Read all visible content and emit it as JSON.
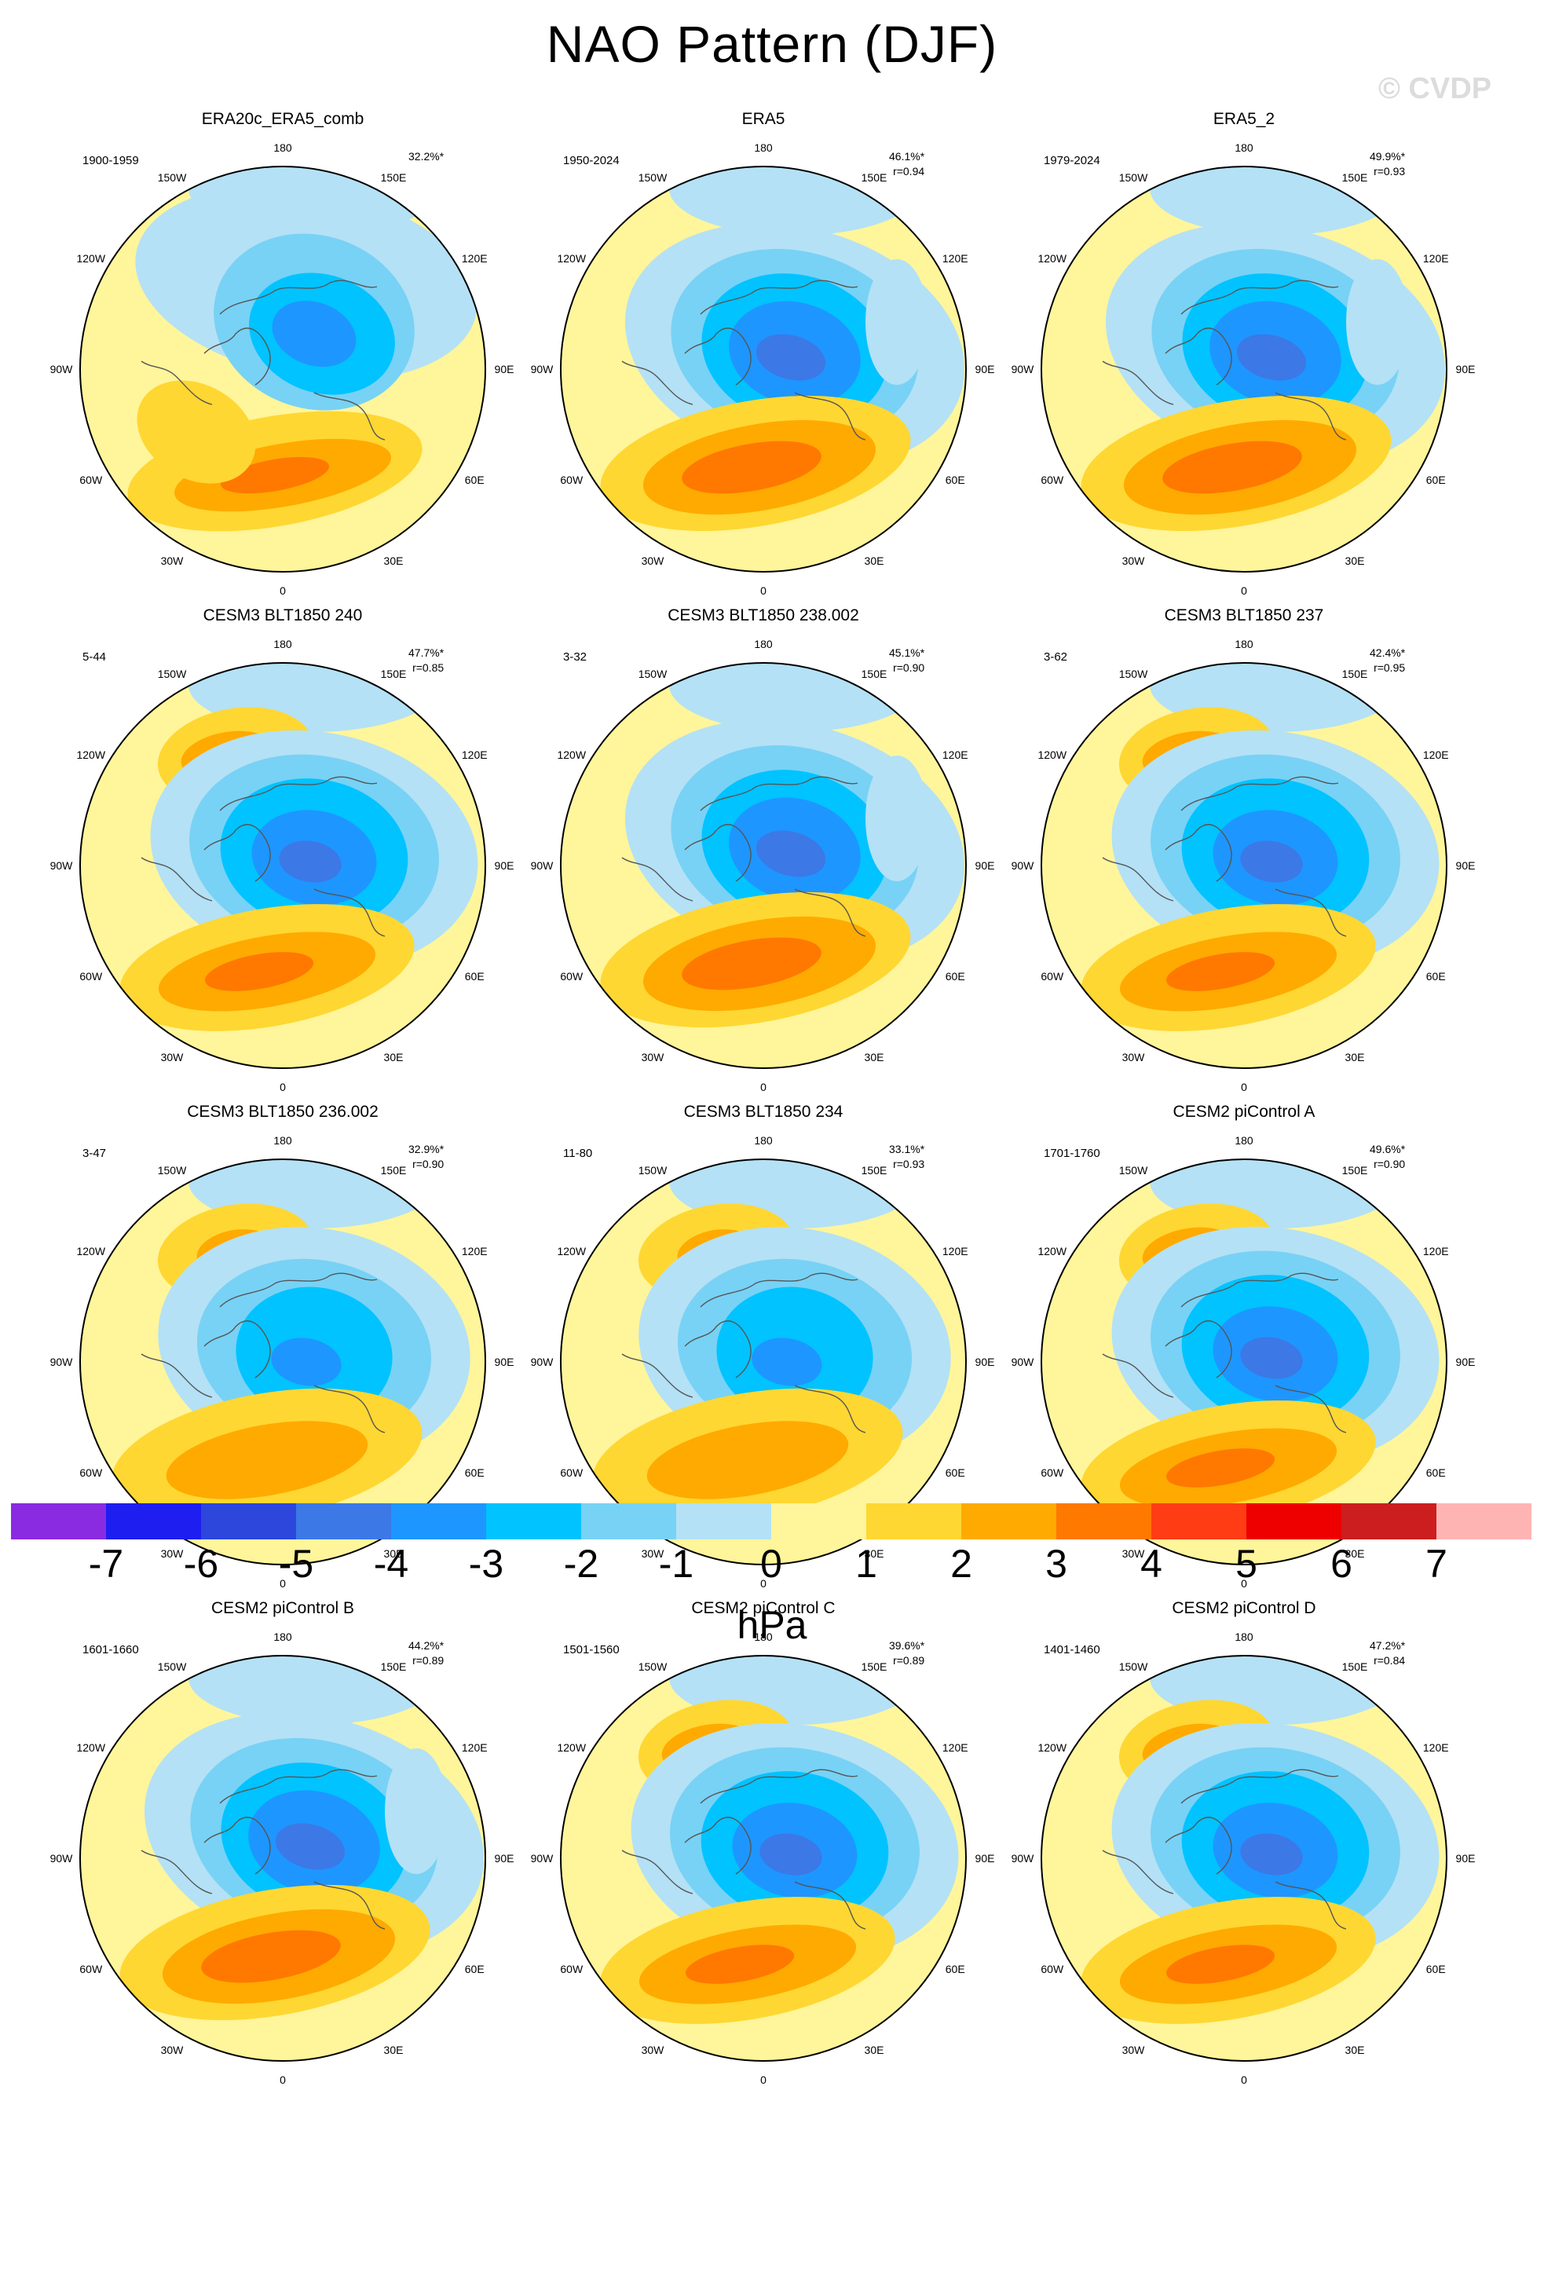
{
  "title": "NAO Pattern (DJF)",
  "watermark": "© CVDP",
  "lon_labels": {
    "top": "180",
    "bottom": "0",
    "right": [
      "150E",
      "120E",
      "90E",
      "60E",
      "30E"
    ],
    "left": [
      "150W",
      "120W",
      "90W",
      "60W",
      "30W"
    ]
  },
  "panels": [
    {
      "title": "ERA20c_ERA5_comb",
      "period": "1900-1959",
      "pct": "32.2%*",
      "r": "",
      "pattern": 0
    },
    {
      "title": "ERA5",
      "period": "1950-2024",
      "pct": "46.1%*",
      "r": "r=0.94",
      "pattern": 1
    },
    {
      "title": "ERA5_2",
      "period": "1979-2024",
      "pct": "49.9%*",
      "r": "r=0.93",
      "pattern": 1
    },
    {
      "title": "CESM3 BLT1850 240",
      "period": "5-44",
      "pct": "47.7%*",
      "r": "r=0.85",
      "pattern": 2
    },
    {
      "title": "CESM3 BLT1850 238.002",
      "period": "3-32",
      "pct": "45.1%*",
      "r": "r=0.90",
      "pattern": 1
    },
    {
      "title": "CESM3 BLT1850 237",
      "period": "3-62",
      "pct": "42.4%*",
      "r": "r=0.95",
      "pattern": 2
    },
    {
      "title": "CESM3 BLT1850 236.002",
      "period": "3-47",
      "pct": "32.9%*",
      "r": "r=0.90",
      "pattern": 3
    },
    {
      "title": "CESM3 BLT1850 234",
      "period": "11-80",
      "pct": "33.1%*",
      "r": "r=0.93",
      "pattern": 3
    },
    {
      "title": "CESM2 piControl A",
      "period": "1701-1760",
      "pct": "49.6%*",
      "r": "r=0.90",
      "pattern": 2
    },
    {
      "title": "CESM2 piControl B",
      "period": "1601-1660",
      "pct": "44.2%*",
      "r": "r=0.89",
      "pattern": 1
    },
    {
      "title": "CESM2 piControl C",
      "period": "1501-1560",
      "pct": "39.6%*",
      "r": "r=0.89",
      "pattern": 2
    },
    {
      "title": "CESM2 piControl D",
      "period": "1401-1460",
      "pct": "47.2%*",
      "r": "r=0.84",
      "pattern": 2
    }
  ],
  "colorbar": {
    "ticks": [
      "-7",
      "-6",
      "-5",
      "-4",
      "-3",
      "-2",
      "-1",
      "0",
      "1",
      "2",
      "3",
      "4",
      "5",
      "6",
      "7"
    ],
    "colors": [
      "#8a2be2",
      "#1e1ef0",
      "#2d46dc",
      "#3c78e6",
      "#1e96ff",
      "#00c3ff",
      "#78d2f5",
      "#b4e1f5",
      "#fff59b",
      "#ffd732",
      "#ffaa00",
      "#ff7800",
      "#ff3c14",
      "#ee0000",
      "#cc1e1e",
      "#ffb4b4"
    ],
    "unit": "hPa"
  }
}
